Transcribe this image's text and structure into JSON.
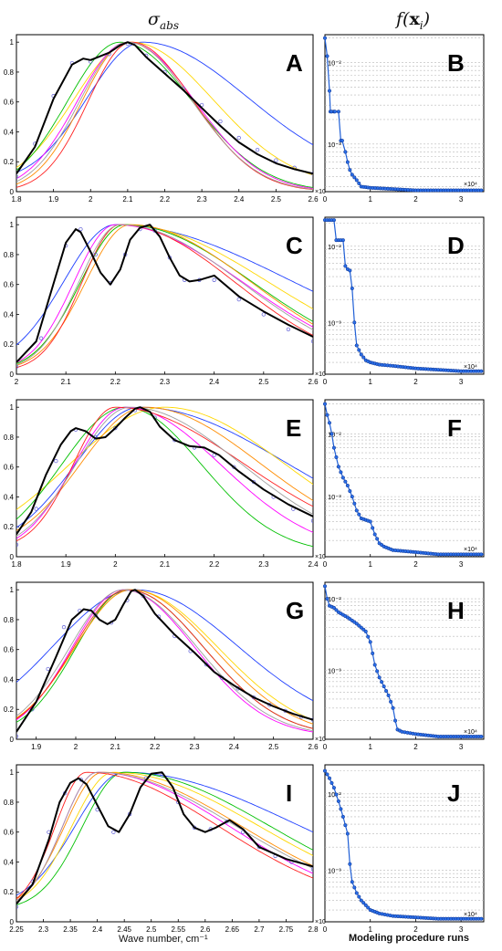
{
  "headers": {
    "left": "σabs",
    "right": "f(xi)"
  },
  "left_xlabel": "Wave number, cm⁻¹",
  "right_xlabel": "Modeling procedure runs",
  "series_colors": [
    "#1f3fff",
    "#ffd700",
    "#00c000",
    "#ff00ff",
    "#ff8c00",
    "#ff2020",
    "#9e9e9e"
  ],
  "chart_data": [
    {
      "panel": "A",
      "type": "line",
      "xlim": [
        1.8,
        2.6
      ],
      "ylim": [
        0,
        1.05
      ],
      "xticks": [
        "1.8",
        "1.9",
        "2",
        "2.1",
        "2.2",
        "2.3",
        "2.4",
        "2.5",
        "2.6"
      ],
      "yticks": [
        "0",
        "0.2",
        "0.4",
        "0.6",
        "0.8",
        "1"
      ],
      "exponent_label": "×10⁴",
      "measured": {
        "x": [
          1.8,
          1.85,
          1.9,
          1.95,
          1.98,
          2.0,
          2.02,
          2.05,
          2.08,
          2.1,
          2.12,
          2.15,
          2.2,
          2.25,
          2.3,
          2.35,
          2.4,
          2.45,
          2.5,
          2.55,
          2.6
        ],
        "y": [
          0.12,
          0.3,
          0.62,
          0.85,
          0.89,
          0.88,
          0.9,
          0.93,
          0.98,
          1.0,
          0.98,
          0.9,
          0.79,
          0.68,
          0.56,
          0.44,
          0.33,
          0.25,
          0.19,
          0.15,
          0.12
        ]
      },
      "measured_dots": {
        "x": [
          1.8,
          1.85,
          1.9,
          1.95,
          2.0,
          2.05,
          2.1,
          2.15,
          2.2,
          2.25,
          2.3,
          2.35,
          2.4,
          2.45,
          2.5,
          2.55,
          2.6
        ],
        "y": [
          0.1,
          0.32,
          0.64,
          0.86,
          0.87,
          0.92,
          0.99,
          0.91,
          0.8,
          0.69,
          0.58,
          0.47,
          0.36,
          0.28,
          0.21,
          0.16,
          0.12
        ]
      },
      "model_series": [
        {
          "peak": 2.14,
          "wl": 0.23,
          "wr": 0.44,
          "lo": 0.06
        },
        {
          "peak": 2.11,
          "wl": 0.24,
          "wr": 0.34,
          "lo": 0.03
        },
        {
          "peak": 2.08,
          "wl": 0.22,
          "wr": 0.3,
          "lo": 0.0
        },
        {
          "peak": 2.1,
          "wl": 0.21,
          "wr": 0.28,
          "lo": 0.0
        },
        {
          "peak": 2.1,
          "wl": 0.19,
          "wr": 0.27,
          "lo": 0.0
        },
        {
          "peak": 2.11,
          "wl": 0.18,
          "wr": 0.26,
          "lo": 0.0
        },
        {
          "peak": 2.1,
          "wl": 0.2,
          "wr": 0.27,
          "lo": 0.0
        }
      ]
    },
    {
      "panel": "B",
      "type": "line",
      "yscale": "log",
      "xlim": [
        0,
        3.5
      ],
      "ylim": [
        0.00026,
        0.022
      ],
      "xticks": [
        "0",
        "1",
        "2",
        "3"
      ],
      "yticks": [
        "10⁻³",
        "10⁻²"
      ],
      "exponent_label": "×10⁴",
      "series": {
        "x": [
          0,
          0.05,
          0.1,
          0.12,
          0.15,
          0.2,
          0.22,
          0.3,
          0.35,
          0.38,
          0.45,
          0.5,
          0.55,
          0.6,
          0.7,
          0.8,
          1.0,
          1.5,
          2.0,
          3.0,
          3.5
        ],
        "y": [
          0.02,
          0.012,
          0.0045,
          0.0025,
          0.0025,
          0.0025,
          0.0025,
          0.0025,
          0.0011,
          0.0011,
          0.0008,
          0.0006,
          0.00048,
          0.00042,
          0.00036,
          0.0003,
          0.00029,
          0.00028,
          0.00027,
          0.00027,
          0.00027
        ]
      }
    },
    {
      "panel": "C",
      "type": "line",
      "xlim": [
        2.0,
        2.6
      ],
      "ylim": [
        0,
        1.05
      ],
      "xticks": [
        "2",
        "2.1",
        "2.2",
        "2.3",
        "2.4",
        "2.5",
        "2.6"
      ],
      "yticks": [
        "0",
        "0.2",
        "0.4",
        "0.6",
        "0.8",
        "1"
      ],
      "exponent_label": "×10⁴",
      "measured": {
        "x": [
          2.0,
          2.04,
          2.07,
          2.1,
          2.12,
          2.13,
          2.15,
          2.17,
          2.19,
          2.21,
          2.23,
          2.25,
          2.27,
          2.29,
          2.31,
          2.33,
          2.35,
          2.37,
          2.4,
          2.45,
          2.5,
          2.55,
          2.6
        ],
        "y": [
          0.08,
          0.22,
          0.55,
          0.88,
          0.97,
          0.95,
          0.82,
          0.68,
          0.6,
          0.7,
          0.9,
          0.98,
          1.0,
          0.92,
          0.78,
          0.66,
          0.62,
          0.63,
          0.66,
          0.52,
          0.42,
          0.33,
          0.25
        ]
      },
      "measured_dots": {
        "x": [
          2.0,
          2.05,
          2.1,
          2.13,
          2.16,
          2.19,
          2.22,
          2.25,
          2.28,
          2.31,
          2.34,
          2.37,
          2.4,
          2.45,
          2.5,
          2.55,
          2.6
        ],
        "y": [
          0.05,
          0.24,
          0.86,
          0.97,
          0.8,
          0.61,
          0.8,
          0.97,
          0.96,
          0.78,
          0.63,
          0.63,
          0.63,
          0.5,
          0.4,
          0.3,
          0.22
        ]
      },
      "model_series": [
        {
          "peak": 2.2,
          "wl": 0.16,
          "wr": 0.55,
          "lo": 0.05
        },
        {
          "peak": 2.22,
          "wl": 0.14,
          "wr": 0.45,
          "lo": 0.02
        },
        {
          "peak": 2.22,
          "wl": 0.14,
          "wr": 0.4,
          "lo": 0.02
        },
        {
          "peak": 2.2,
          "wl": 0.13,
          "wr": 0.4,
          "lo": 0.02
        },
        {
          "peak": 2.23,
          "wl": 0.14,
          "wr": 0.38,
          "lo": 0.02
        },
        {
          "peak": 2.21,
          "wl": 0.12,
          "wr": 0.36,
          "lo": 0.02
        },
        {
          "peak": 2.21,
          "wl": 0.13,
          "wr": 0.38,
          "lo": 0.02
        }
      ]
    },
    {
      "panel": "D",
      "type": "line",
      "yscale": "log",
      "xlim": [
        0,
        3.5
      ],
      "ylim": [
        0.00021,
        0.024
      ],
      "xticks": [
        "0",
        "1",
        "2",
        "3"
      ],
      "yticks": [
        "10⁻³",
        "10⁻²"
      ],
      "exponent_label": "×10⁴",
      "series": {
        "x": [
          0,
          0.1,
          0.2,
          0.25,
          0.3,
          0.4,
          0.45,
          0.5,
          0.55,
          0.6,
          0.65,
          0.7,
          0.8,
          0.9,
          1.0,
          1.2,
          1.5,
          2.0,
          2.5,
          3.0,
          3.5
        ],
        "y": [
          0.022,
          0.022,
          0.022,
          0.012,
          0.012,
          0.012,
          0.0055,
          0.005,
          0.0048,
          0.0028,
          0.001,
          0.0005,
          0.00038,
          0.00032,
          0.0003,
          0.00028,
          0.00027,
          0.00025,
          0.00024,
          0.00023,
          0.00023
        ]
      }
    },
    {
      "panel": "E",
      "type": "line",
      "xlim": [
        1.8,
        2.4
      ],
      "ylim": [
        0,
        1.05
      ],
      "xticks": [
        "1.8",
        "1.9",
        "2",
        "2.1",
        "2.2",
        "2.3",
        "2.4"
      ],
      "yticks": [
        "0",
        "0.2",
        "0.4",
        "0.6",
        "0.8",
        "1"
      ],
      "exponent_label": "×10⁴",
      "measured": {
        "x": [
          1.8,
          1.83,
          1.86,
          1.89,
          1.91,
          1.92,
          1.94,
          1.96,
          1.98,
          2.0,
          2.02,
          2.04,
          2.05,
          2.07,
          2.09,
          2.12,
          2.15,
          2.18,
          2.21,
          2.25,
          2.3,
          2.35,
          2.4
        ],
        "y": [
          0.15,
          0.3,
          0.55,
          0.75,
          0.84,
          0.86,
          0.84,
          0.79,
          0.8,
          0.86,
          0.93,
          0.99,
          1.0,
          0.97,
          0.87,
          0.78,
          0.74,
          0.73,
          0.68,
          0.57,
          0.45,
          0.35,
          0.27
        ]
      },
      "measured_dots": {
        "x": [
          1.8,
          1.84,
          1.88,
          1.92,
          1.96,
          2.0,
          2.04,
          2.08,
          2.12,
          2.16,
          2.2,
          2.24,
          2.28,
          2.32,
          2.36,
          2.4
        ],
        "y": [
          0.08,
          0.32,
          0.64,
          0.85,
          0.8,
          0.86,
          0.98,
          0.93,
          0.78,
          0.73,
          0.68,
          0.6,
          0.5,
          0.4,
          0.32,
          0.24
        ]
      },
      "model_series": [
        {
          "peak": 2.05,
          "wl": 0.2,
          "wr": 0.46,
          "lo": 0.05
        },
        {
          "peak": 2.1,
          "wl": 0.3,
          "wr": 0.38,
          "lo": 0.02
        },
        {
          "peak": 2.02,
          "wl": 0.2,
          "wr": 0.24,
          "lo": 0.02
        },
        {
          "peak": 2.02,
          "wl": 0.16,
          "wr": 0.3,
          "lo": 0.02
        },
        {
          "peak": 2.06,
          "wl": 0.2,
          "wr": 0.36,
          "lo": 0.05
        },
        {
          "peak": 2.0,
          "wl": 0.13,
          "wr": 0.4,
          "lo": 0.05
        },
        {
          "peak": 2.03,
          "wl": 0.17,
          "wr": 0.35,
          "lo": 0.03
        }
      ]
    },
    {
      "panel": "F",
      "type": "line",
      "yscale": "log",
      "xlim": [
        0,
        3.5
      ],
      "ylim": [
        0.00011,
        0.035
      ],
      "xticks": [
        "0",
        "1",
        "2",
        "3"
      ],
      "yticks": [
        "10⁻³",
        "10⁻²"
      ],
      "exponent_label": "×10⁴",
      "series": {
        "x": [
          0,
          0.05,
          0.1,
          0.15,
          0.2,
          0.3,
          0.4,
          0.5,
          0.6,
          0.7,
          0.8,
          1.0,
          1.1,
          1.2,
          1.3,
          1.5,
          2.0,
          2.5,
          3.0,
          3.5
        ],
        "y": [
          0.03,
          0.02,
          0.015,
          0.01,
          0.006,
          0.003,
          0.002,
          0.0015,
          0.001,
          0.0006,
          0.00045,
          0.0004,
          0.00025,
          0.00018,
          0.00016,
          0.00014,
          0.00013,
          0.00012,
          0.00012,
          0.00012
        ]
      }
    },
    {
      "panel": "G",
      "type": "line",
      "xlim": [
        1.85,
        2.6
      ],
      "ylim": [
        0,
        1.05
      ],
      "xticks": [
        "1.9",
        "2",
        "2.1",
        "2.2",
        "2.3",
        "2.4",
        "2.5",
        "2.6"
      ],
      "yticks": [
        "0",
        "0.2",
        "0.4",
        "0.6",
        "0.8",
        "1"
      ],
      "exponent_label": "×10⁴",
      "measured": {
        "x": [
          1.85,
          1.9,
          1.95,
          1.99,
          2.02,
          2.04,
          2.06,
          2.08,
          2.1,
          2.12,
          2.14,
          2.15,
          2.17,
          2.2,
          2.25,
          2.3,
          2.35,
          2.4,
          2.45,
          2.5,
          2.55,
          2.6
        ],
        "y": [
          0.05,
          0.25,
          0.55,
          0.8,
          0.87,
          0.86,
          0.8,
          0.77,
          0.8,
          0.9,
          0.99,
          1.0,
          0.96,
          0.84,
          0.7,
          0.58,
          0.45,
          0.36,
          0.28,
          0.22,
          0.17,
          0.13
        ]
      },
      "measured_dots": {
        "x": [
          1.85,
          1.89,
          1.93,
          1.97,
          2.01,
          2.05,
          2.09,
          2.13,
          2.17,
          2.21,
          2.25,
          2.29,
          2.33,
          2.37,
          2.41,
          2.45,
          2.49,
          2.53,
          2.57,
          2.6
        ],
        "y": [
          0.02,
          0.2,
          0.47,
          0.75,
          0.86,
          0.83,
          0.78,
          0.93,
          0.96,
          0.82,
          0.69,
          0.59,
          0.5,
          0.41,
          0.34,
          0.28,
          0.23,
          0.19,
          0.15,
          0.13
        ]
      },
      "model_series": [
        {
          "peak": 2.15,
          "wl": 0.32,
          "wr": 0.4,
          "lo": 0.05
        },
        {
          "peak": 2.14,
          "wl": 0.22,
          "wr": 0.34,
          "lo": 0.02
        },
        {
          "peak": 2.13,
          "wl": 0.2,
          "wr": 0.3,
          "lo": 0.02
        },
        {
          "peak": 2.12,
          "wl": 0.2,
          "wr": 0.28,
          "lo": 0.02
        },
        {
          "peak": 2.14,
          "wl": 0.22,
          "wr": 0.32,
          "lo": 0.02
        },
        {
          "peak": 2.13,
          "wl": 0.21,
          "wr": 0.3,
          "lo": 0.02
        },
        {
          "peak": 2.12,
          "wl": 0.21,
          "wr": 0.29,
          "lo": 0.02
        }
      ]
    },
    {
      "panel": "H",
      "type": "line",
      "yscale": "log",
      "xlim": [
        0,
        3.5
      ],
      "ylim": [
        0.00011,
        0.017
      ],
      "xticks": [
        "0",
        "1",
        "2",
        "3"
      ],
      "yticks": [
        "10⁻³",
        "10⁻²"
      ],
      "exponent_label": "×10⁴",
      "series": {
        "x": [
          0,
          0.05,
          0.1,
          0.2,
          0.3,
          0.5,
          0.7,
          0.9,
          1.0,
          1.1,
          1.2,
          1.3,
          1.4,
          1.5,
          1.55,
          1.6,
          1.7,
          2.0,
          2.5,
          3.0,
          3.5
        ],
        "y": [
          0.015,
          0.01,
          0.008,
          0.0075,
          0.0065,
          0.0055,
          0.0045,
          0.0035,
          0.0025,
          0.0012,
          0.0008,
          0.0006,
          0.00045,
          0.0003,
          0.0002,
          0.00015,
          0.00014,
          0.00013,
          0.00012,
          0.00012,
          0.00012
        ]
      }
    },
    {
      "panel": "I",
      "type": "line",
      "xlim": [
        2.25,
        2.8
      ],
      "ylim": [
        0,
        1.05
      ],
      "xticks": [
        "2.25",
        "2.3",
        "2.35",
        "2.4",
        "2.45",
        "2.5",
        "2.55",
        "2.6",
        "2.65",
        "2.7",
        "2.75",
        "2.8"
      ],
      "yticks": [
        "0",
        "0.2",
        "0.4",
        "0.6",
        "0.8",
        "1"
      ],
      "exponent_label": "×10",
      "measured": {
        "x": [
          2.25,
          2.28,
          2.31,
          2.33,
          2.35,
          2.365,
          2.38,
          2.4,
          2.42,
          2.44,
          2.46,
          2.48,
          2.5,
          2.52,
          2.54,
          2.56,
          2.58,
          2.6,
          2.62,
          2.645,
          2.67,
          2.7,
          2.75,
          2.8
        ],
        "y": [
          0.12,
          0.25,
          0.55,
          0.8,
          0.93,
          0.96,
          0.92,
          0.78,
          0.64,
          0.6,
          0.72,
          0.9,
          0.99,
          1.0,
          0.9,
          0.72,
          0.63,
          0.6,
          0.63,
          0.68,
          0.62,
          0.5,
          0.42,
          0.37
        ]
      },
      "measured_dots": {
        "x": [
          2.25,
          2.28,
          2.31,
          2.34,
          2.37,
          2.4,
          2.43,
          2.46,
          2.49,
          2.52,
          2.55,
          2.58,
          2.61,
          2.64,
          2.67,
          2.7,
          2.73,
          2.76,
          2.8
        ],
        "y": [
          0.1,
          0.27,
          0.6,
          0.86,
          0.95,
          0.75,
          0.6,
          0.72,
          0.96,
          0.98,
          0.8,
          0.63,
          0.62,
          0.67,
          0.6,
          0.5,
          0.44,
          0.4,
          0.35
        ]
      },
      "model_series": [
        {
          "peak": 2.45,
          "wl": 0.14,
          "wr": 0.5,
          "lo": 0.1
        },
        {
          "peak": 2.43,
          "wl": 0.12,
          "wr": 0.42,
          "lo": 0.08
        },
        {
          "peak": 2.45,
          "wl": 0.12,
          "wr": 0.42,
          "lo": 0.08
        },
        {
          "peak": 2.4,
          "wl": 0.1,
          "wr": 0.38,
          "lo": 0.08
        },
        {
          "peak": 2.41,
          "wl": 0.11,
          "wr": 0.4,
          "lo": 0.08
        },
        {
          "peak": 2.38,
          "wl": 0.09,
          "wr": 0.38,
          "lo": 0.08
        },
        {
          "peak": 2.4,
          "wl": 0.1,
          "wr": 0.4,
          "lo": 0.08
        }
      ]
    },
    {
      "panel": "J",
      "type": "line",
      "yscale": "log",
      "xlim": [
        0,
        3.5
      ],
      "ylim": [
        0.00021,
        0.024
      ],
      "xticks": [
        "0",
        "1",
        "2",
        "3"
      ],
      "yticks": [
        "10⁻³",
        "10⁻²"
      ],
      "exponent_label": "×10⁴",
      "series": {
        "x": [
          0,
          0.05,
          0.1,
          0.2,
          0.3,
          0.4,
          0.5,
          0.55,
          0.6,
          0.7,
          0.8,
          1.0,
          1.2,
          1.5,
          2.0,
          2.5,
          3.0,
          3.5
        ],
        "y": [
          0.02,
          0.018,
          0.016,
          0.012,
          0.008,
          0.005,
          0.003,
          0.0012,
          0.0007,
          0.0005,
          0.0004,
          0.0003,
          0.00027,
          0.00025,
          0.00024,
          0.00023,
          0.00023,
          0.00023
        ]
      }
    }
  ]
}
